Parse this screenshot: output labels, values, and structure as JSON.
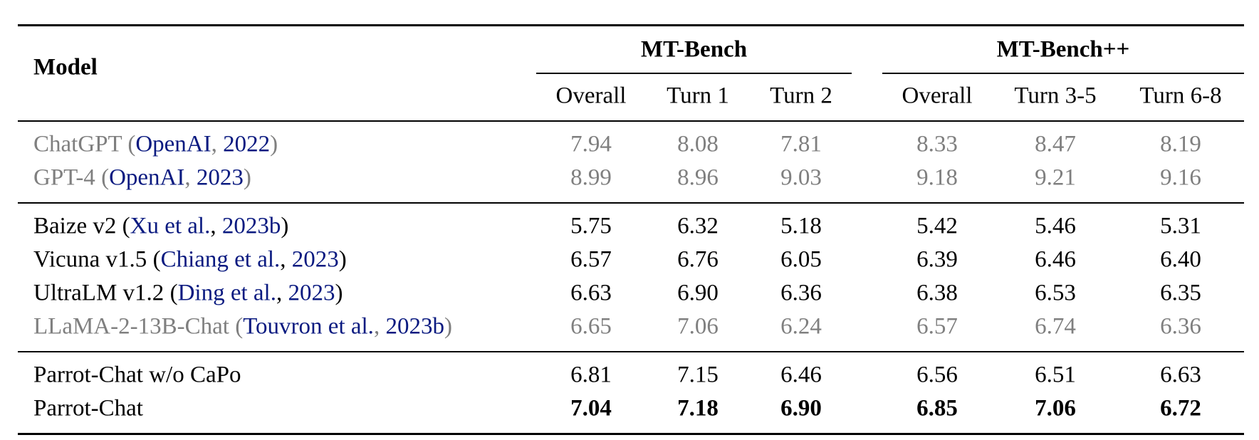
{
  "table": {
    "header": {
      "model": "Model",
      "groups": [
        {
          "title": "MT-Bench",
          "columns": [
            "Overall",
            "Turn 1",
            "Turn 2"
          ]
        },
        {
          "title": "MT-Bench++",
          "columns": [
            "Overall",
            "Turn 3-5",
            "Turn 6-8"
          ]
        }
      ]
    },
    "groups": [
      {
        "rows": [
          {
            "model": "ChatGPT",
            "cite_author": "OpenAI",
            "cite_year": "2022",
            "muted": true,
            "values": [
              7.94,
              8.08,
              7.81,
              8.33,
              8.47,
              8.19
            ],
            "value_labels": [
              "7.94",
              "8.08",
              "7.81",
              "8.33",
              "8.47",
              "8.19"
            ]
          },
          {
            "model": "GPT-4",
            "cite_author": "OpenAI",
            "cite_year": "2023",
            "muted": true,
            "values": [
              8.99,
              8.96,
              9.03,
              9.18,
              9.21,
              9.16
            ],
            "value_labels": [
              "8.99",
              "8.96",
              "9.03",
              "9.18",
              "9.21",
              "9.16"
            ]
          }
        ]
      },
      {
        "rows": [
          {
            "model": "Baize v2",
            "cite_author": "Xu et al.",
            "cite_year": "2023b",
            "values": [
              5.75,
              6.32,
              5.18,
              5.42,
              5.46,
              5.31
            ],
            "value_labels": [
              "5.75",
              "6.32",
              "5.18",
              "5.42",
              "5.46",
              "5.31"
            ]
          },
          {
            "model": "Vicuna v1.5",
            "cite_author": "Chiang et al.",
            "cite_year": "2023",
            "values": [
              6.57,
              6.76,
              6.05,
              6.39,
              6.46,
              6.4
            ],
            "value_labels": [
              "6.57",
              "6.76",
              "6.05",
              "6.39",
              "6.46",
              "6.40"
            ]
          },
          {
            "model": "UltraLM v1.2",
            "cite_author": "Ding et al.",
            "cite_year": "2023",
            "values": [
              6.63,
              6.9,
              6.36,
              6.38,
              6.53,
              6.35
            ],
            "value_labels": [
              "6.63",
              "6.90",
              "6.36",
              "6.38",
              "6.53",
              "6.35"
            ]
          },
          {
            "model": "LLaMA-2-13B-Chat",
            "cite_author": "Touvron et al.",
            "cite_year": "2023b",
            "muted": true,
            "values": [
              6.65,
              7.06,
              6.24,
              6.57,
              6.74,
              6.36
            ],
            "value_labels": [
              "6.65",
              "7.06",
              "6.24",
              "6.57",
              "6.74",
              "6.36"
            ]
          }
        ]
      },
      {
        "rows": [
          {
            "model": "Parrot-Chat w/o CaPo",
            "values": [
              6.81,
              7.15,
              6.46,
              6.56,
              6.51,
              6.63
            ],
            "value_labels": [
              "6.81",
              "7.15",
              "6.46",
              "6.56",
              "6.51",
              "6.63"
            ]
          },
          {
            "model": "Parrot-Chat",
            "bold": true,
            "values": [
              7.04,
              7.18,
              6.9,
              6.85,
              7.06,
              6.72
            ],
            "value_labels": [
              "7.04",
              "7.18",
              "6.90",
              "6.85",
              "7.06",
              "6.72"
            ]
          }
        ]
      }
    ]
  }
}
